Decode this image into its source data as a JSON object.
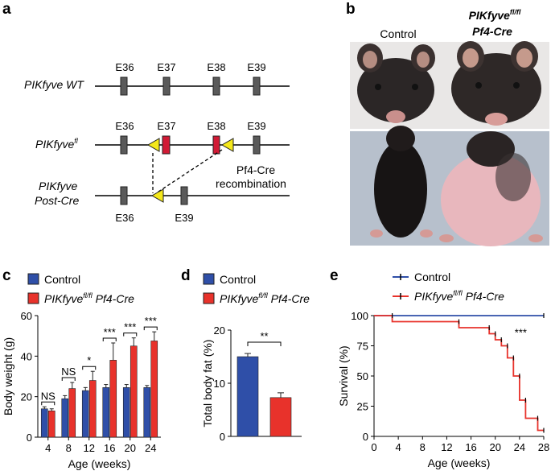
{
  "panel_letters": {
    "a": "a",
    "b": "b",
    "c": "c",
    "d": "d",
    "e": "e"
  },
  "panel_a": {
    "wt_label": "PIKfyve WT",
    "fl_label_main": "PIKfyve",
    "fl_label_sup": "fl",
    "postcre_label_1": "PIKfyve",
    "postcre_label_2": "Post-Cre",
    "exons_wt": [
      "E36",
      "E37",
      "E38",
      "E39"
    ],
    "exons_fl": [
      "E36",
      "E37",
      "E38",
      "E39"
    ],
    "exons_post": [
      "E36",
      "E39"
    ],
    "recomb_1": "Pf4-Cre",
    "recomb_2": "recombination"
  },
  "panel_b": {
    "control_label": "Control",
    "mutant_label_1_main": "PIKfyve",
    "mutant_label_1_sup": "fl/fl",
    "mutant_label_2": "Pf4-Cre"
  },
  "legend": {
    "control": "Control",
    "mutant_main": "PIKfyve",
    "mutant_sup": "fl/fl",
    "mutant_rest": " Pf4-Cre",
    "control_color": "#2f4fa8",
    "mutant_color": "#e8322b"
  },
  "chart_data": [
    {
      "type": "bar",
      "title": "",
      "xlabel": "Age (weeks)",
      "ylabel": "Body weight (g)",
      "ylim": [
        0,
        60
      ],
      "yticks": [
        "0",
        "20",
        "40",
        "60"
      ],
      "categories": [
        "4",
        "8",
        "12",
        "16",
        "20",
        "24"
      ],
      "series": [
        {
          "name": "Control",
          "values": [
            14,
            19,
            23,
            24.5,
            24.5,
            24.5
          ],
          "errors": [
            1,
            1.5,
            1.5,
            1.5,
            1.5,
            1
          ]
        },
        {
          "name": "PIKfyve fl/fl Pf4-Cre",
          "values": [
            13,
            24,
            28,
            38,
            45,
            47.5
          ],
          "errors": [
            1,
            3,
            4.5,
            8.5,
            4,
            4.5
          ]
        }
      ],
      "significance": [
        "NS",
        "NS",
        "*",
        "***",
        "***",
        "***"
      ]
    },
    {
      "type": "bar",
      "xlabel": "",
      "ylabel": "Total body fat (%)",
      "ylim": [
        0,
        20
      ],
      "yticks": [
        "0",
        "10",
        "20"
      ],
      "categories": [
        "Control",
        "PIKfyve fl/fl Pf4-Cre"
      ],
      "values": [
        15,
        7.3
      ],
      "errors": [
        0.6,
        0.9
      ],
      "significance": "**"
    },
    {
      "type": "line",
      "xlabel": "Age (weeks)",
      "ylabel": "Survival (%)",
      "xlim": [
        0,
        28
      ],
      "ylim": [
        0,
        100
      ],
      "xticks": [
        "0",
        "4",
        "8",
        "12",
        "16",
        "20",
        "24",
        "28"
      ],
      "yticks": [
        "0",
        "25",
        "50",
        "75",
        "100"
      ],
      "series": [
        {
          "name": "Control",
          "x": [
            0,
            28
          ],
          "y": [
            100,
            100
          ]
        },
        {
          "name": "PIKfyve fl/fl Pf4-Cre",
          "x": [
            0,
            3,
            3,
            14,
            14,
            19,
            19,
            20,
            20,
            21,
            21,
            22,
            22,
            23,
            23,
            24,
            24,
            25,
            25,
            27,
            27,
            28
          ],
          "y": [
            100,
            100,
            95,
            95,
            90,
            90,
            85,
            85,
            80,
            80,
            75,
            75,
            65,
            65,
            50,
            50,
            30,
            30,
            15,
            15,
            5,
            5
          ]
        }
      ],
      "significance": "***"
    }
  ]
}
